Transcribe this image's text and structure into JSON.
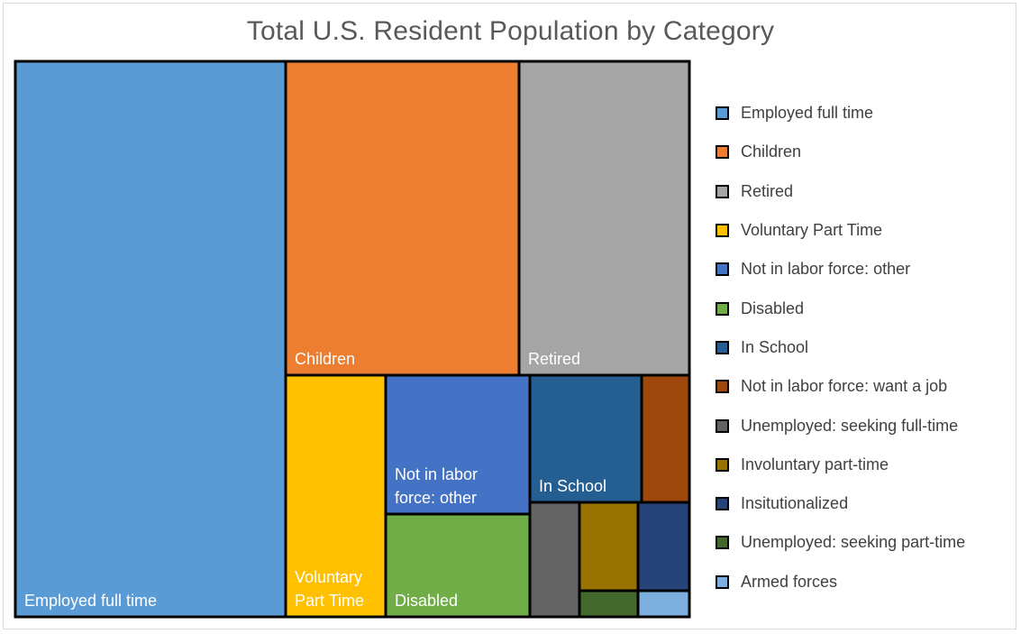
{
  "chart_data": {
    "type": "treemap",
    "title": "Total U.S. Resident Population by Category",
    "unit": "approximate relative population share (%)",
    "legend_position": "right",
    "categories": [
      {
        "name": "Employed full time",
        "value": 33.4,
        "color": "#5B9BD5",
        "label_lines": [
          "Employed full time"
        ]
      },
      {
        "name": "Children",
        "value": 16.1,
        "color": "#ED7D31",
        "label_lines": [
          "Children"
        ]
      },
      {
        "name": "Retired",
        "value": 11.3,
        "color": "#A5A5A5",
        "label_lines": [
          "Retired"
        ]
      },
      {
        "name": "Voluntary Part Time",
        "value": 7.7,
        "color": "#FFC000",
        "label_lines": [
          "Voluntary",
          "Part Time"
        ]
      },
      {
        "name": "Not in labor force: other",
        "value": 6.8,
        "color": "#4472C4",
        "label_lines": [
          "Not in labor",
          "force: other"
        ]
      },
      {
        "name": "Disabled",
        "value": 5.3,
        "color": "#70AD47",
        "label_lines": [
          "Disabled"
        ]
      },
      {
        "name": "In School",
        "value": 5.1,
        "color": "#255E91",
        "label_lines": [
          "In School"
        ]
      },
      {
        "name": "Not in labor force: want a job",
        "value": 2.5,
        "color": "#9E480E",
        "label_lines": []
      },
      {
        "name": "Unemployed: seeking full-time",
        "value": 2.3,
        "color": "#636363",
        "label_lines": []
      },
      {
        "name": "Involuntary part-time",
        "value": 2.1,
        "color": "#997300",
        "label_lines": []
      },
      {
        "name": "Insitutionalized",
        "value": 2.2,
        "color": "#264478",
        "label_lines": []
      },
      {
        "name": "Unemployed: seeking part-time",
        "value": 0.7,
        "color": "#43682B",
        "label_lines": []
      },
      {
        "name": "Armed forces",
        "value": 0.5,
        "color": "#7CAFDD",
        "label_lines": []
      }
    ]
  }
}
